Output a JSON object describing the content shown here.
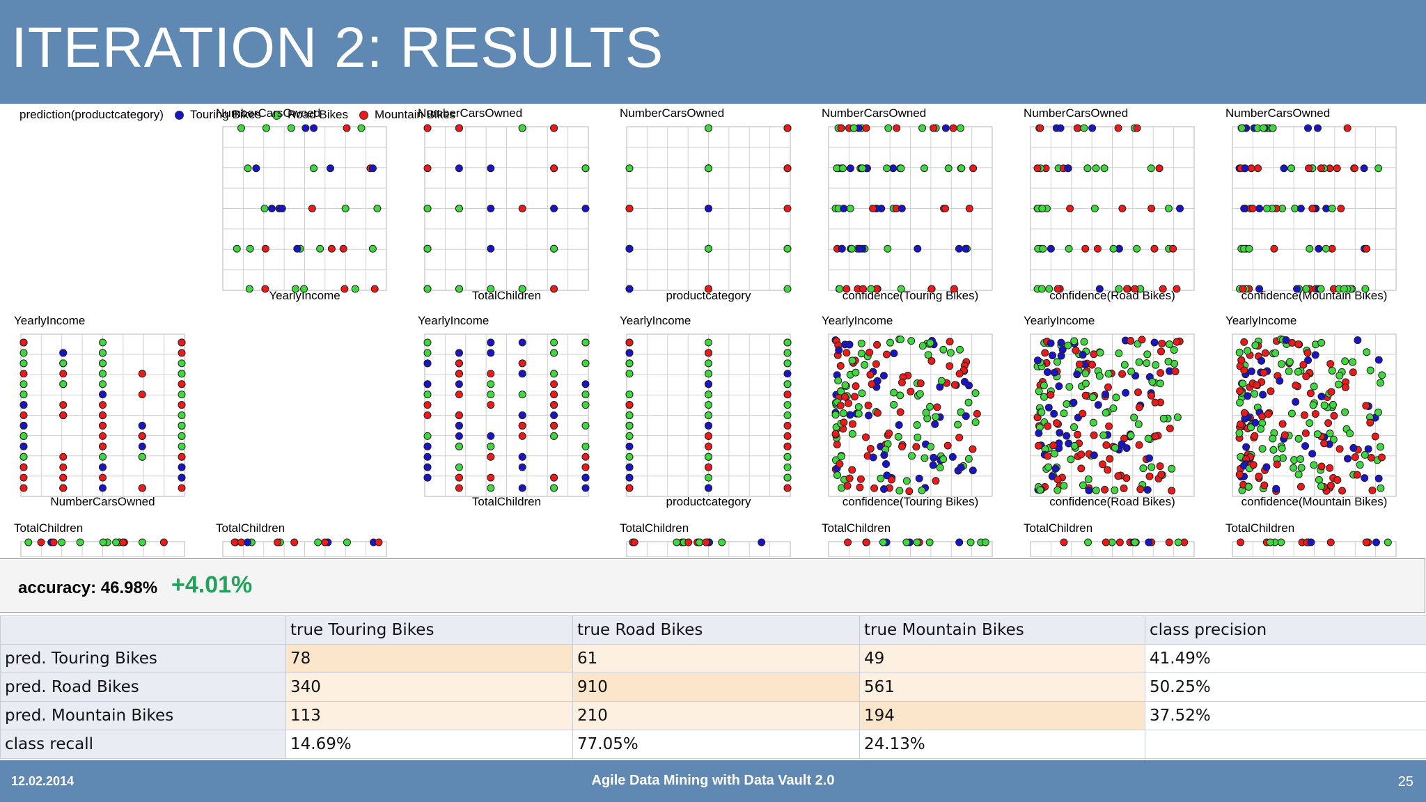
{
  "slide": {
    "title": "ITERATION 2: RESULTS",
    "footer_date": "12.02.2014",
    "footer_title": "Agile Data Mining with Data Vault 2.0",
    "page_number": "25"
  },
  "legend": {
    "label": "prediction(productcategory)",
    "items": [
      {
        "name": "Touring Bikes",
        "color": "#1a14c8"
      },
      {
        "name": "Road Bikes",
        "color": "#3fd93f"
      },
      {
        "name": "Mountain Bikes",
        "color": "#ee1a1a"
      }
    ]
  },
  "scatter_matrix": {
    "rows": [
      {
        "y_label": "NumberCarsOwned",
        "panels": [
          {
            "x_label": "",
            "y_label": "",
            "empty": true
          },
          {
            "x_label": "YearlyIncome",
            "y_label": "NumberCarsOwned"
          },
          {
            "x_label": "TotalChildren",
            "y_label": "NumberCarsOwned"
          },
          {
            "x_label": "productcategory",
            "y_label": "NumberCarsOwned"
          },
          {
            "x_label": "confidence(Touring Bikes)",
            "y_label": "NumberCarsOwned"
          },
          {
            "x_label": "confidence(Road Bikes)",
            "y_label": "NumberCarsOwned"
          },
          {
            "x_label": "confidence(Mountain Bikes)",
            "y_label": "NumberCarsOwned"
          }
        ]
      },
      {
        "y_label": "YearlyIncome",
        "panels": [
          {
            "x_label": "NumberCarsOwned",
            "y_label": "YearlyIncome"
          },
          {
            "x_label": "",
            "y_label": "",
            "empty": true
          },
          {
            "x_label": "TotalChildren",
            "y_label": "YearlyIncome"
          },
          {
            "x_label": "productcategory",
            "y_label": "YearlyIncome"
          },
          {
            "x_label": "confidence(Touring Bikes)",
            "y_label": "YearlyIncome"
          },
          {
            "x_label": "confidence(Road Bikes)",
            "y_label": "YearlyIncome"
          },
          {
            "x_label": "confidence(Mountain Bikes)",
            "y_label": "YearlyIncome"
          }
        ]
      },
      {
        "y_label": "TotalChildren",
        "panels": [
          {
            "y_label": "TotalChildren"
          },
          {
            "y_label": "TotalChildren"
          },
          {
            "y_label": "",
            "empty": true
          },
          {
            "y_label": "TotalChildren"
          },
          {
            "y_label": "TotalChildren"
          },
          {
            "y_label": "TotalChildren"
          },
          {
            "y_label": "TotalChildren"
          }
        ]
      }
    ]
  },
  "accuracy": {
    "label": "accuracy: 46.98%",
    "delta": "+4.01%"
  },
  "confusion_matrix": {
    "headers": [
      "",
      "true Touring Bikes",
      "true Road Bikes",
      "true Mountain Bikes",
      "class precision"
    ],
    "rows": [
      {
        "label": "pred. Touring Bikes",
        "values": [
          "78",
          "61",
          "49"
        ],
        "precision": "41.49%"
      },
      {
        "label": "pred. Road Bikes",
        "values": [
          "340",
          "910",
          "561"
        ],
        "precision": "50.25%"
      },
      {
        "label": "pred. Mountain Bikes",
        "values": [
          "113",
          "210",
          "194"
        ],
        "precision": "37.52%"
      },
      {
        "label": "class recall",
        "values": [
          "14.69%",
          "77.05%",
          "24.13%"
        ],
        "precision": ""
      }
    ]
  }
}
